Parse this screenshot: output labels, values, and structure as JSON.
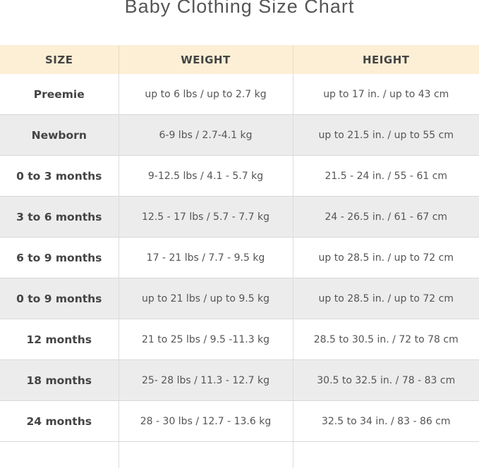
{
  "title": "Baby Clothing Size Chart",
  "colors": {
    "header_bg": "#fcefd6",
    "alt_row_bg": "#ececec"
  },
  "headers": [
    "SIZE",
    "WEIGHT",
    "HEIGHT"
  ],
  "rows": [
    [
      "Preemie",
      "up to 6 lbs / up to 2.7 kg",
      "up to 17 in. / up to 43 cm"
    ],
    [
      "Newborn",
      "6-9 lbs / 2.7-4.1 kg",
      "up to 21.5 in. / up to 55 cm"
    ],
    [
      "0 to 3 months",
      "9-12.5 lbs / 4.1 - 5.7 kg",
      "21.5 - 24 in. / 55 - 61 cm"
    ],
    [
      "3 to 6 months",
      "12.5 - 17 lbs / 5.7 - 7.7 kg",
      "24 - 26.5 in. / 61 - 67 cm"
    ],
    [
      "6 to 9 months",
      "17 - 21 lbs / 7.7 - 9.5 kg",
      "up to 28.5 in. / up to 72 cm"
    ],
    [
      "0 to 9 months",
      "up to 21 lbs / up to 9.5 kg",
      "up to 28.5 in. / up to 72 cm"
    ],
    [
      "12 months",
      "21 to 25 lbs / 9.5 -11.3 kg",
      "28.5 to 30.5 in. / 72 to 78 cm"
    ],
    [
      "18 months",
      "25- 28 lbs / 11.3 - 12.7 kg",
      "30.5 to 32.5 in. / 78 - 83 cm"
    ],
    [
      "24 months",
      "28 - 30 lbs / 12.7 - 13.6 kg",
      "32.5 to 34 in. / 83 - 86 cm"
    ]
  ]
}
